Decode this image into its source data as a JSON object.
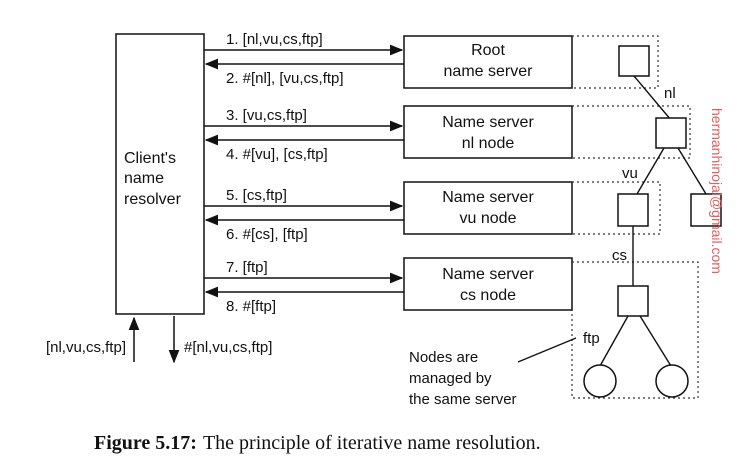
{
  "client": {
    "label_lines": [
      "Client's",
      "name",
      "resolver"
    ]
  },
  "servers": [
    {
      "line1": "Root",
      "line2": "name server"
    },
    {
      "line1": "Name server",
      "line2": "nl node"
    },
    {
      "line1": "Name server",
      "line2": "vu node"
    },
    {
      "line1": "Name server",
      "line2": "cs node"
    }
  ],
  "messages": [
    "1. [nl,vu,cs,ftp]",
    "2. #[nl], [vu,cs,ftp]",
    "3. [vu,cs,ftp]",
    "4. #[vu], [cs,ftp]",
    "5. [cs,ftp]",
    "6. #[cs], [ftp]",
    "7. [ftp]",
    "8. #[ftp]"
  ],
  "io": {
    "input": "[nl,vu,cs,ftp]",
    "output": "#[nl,vu,cs,ftp]"
  },
  "tree_labels": {
    "nl": "nl",
    "vu": "vu",
    "cs": "cs",
    "ftp": "ftp"
  },
  "note_lines": [
    "Nodes are",
    "managed by",
    "the same server"
  ],
  "watermark": "hermanhinojal@gmail.com",
  "caption": {
    "bold": "Figure 5.17:",
    "text": "The principle of iterative name resolution."
  }
}
